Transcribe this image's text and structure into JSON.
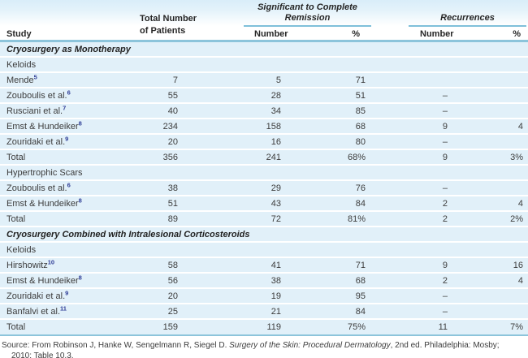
{
  "header": {
    "study": "Study",
    "total_line1": "Total Number",
    "total_line2": "of Patients",
    "remission_group": "Significant to Complete Remission",
    "recurrences_group": "Recurrences",
    "remission_number": "Number",
    "remission_percent": "%",
    "recurrences_number": "Number",
    "recurrences_percent": "%"
  },
  "rows": [
    {
      "type": "section",
      "label": "Cryosurgery as Monotherapy"
    },
    {
      "type": "subsection",
      "label": "Keloids"
    },
    {
      "type": "data",
      "study": "Mende",
      "sup": "5",
      "patients": "7",
      "rem_n": "5",
      "rem_pct": "71",
      "rec_n": "",
      "rec_pct": ""
    },
    {
      "type": "data",
      "study": "Zouboulis et al.",
      "sup": "6",
      "patients": "55",
      "rem_n": "28",
      "rem_pct": "51",
      "rec_n": "–",
      "rec_pct": ""
    },
    {
      "type": "data",
      "study": "Rusciani et al.",
      "sup": "7",
      "patients": "40",
      "rem_n": "34",
      "rem_pct": "85",
      "rec_n": "–",
      "rec_pct": ""
    },
    {
      "type": "data",
      "study": "Emst & Hundeiker",
      "sup": "8",
      "patients": "234",
      "rem_n": "158",
      "rem_pct": "68",
      "rec_n": "9",
      "rec_pct": "4"
    },
    {
      "type": "data",
      "study": "Zouridaki et al.",
      "sup": "9",
      "patients": "20",
      "rem_n": "16",
      "rem_pct": "80",
      "rec_n": "–",
      "rec_pct": ""
    },
    {
      "type": "total",
      "study": "Total",
      "sup": "",
      "patients": "356",
      "rem_n": "241",
      "rem_pct": "68%",
      "rec_n": "9",
      "rec_pct": "3%"
    },
    {
      "type": "subsection",
      "label": "Hypertrophic Scars"
    },
    {
      "type": "data",
      "study": "Zouboulis et al.",
      "sup": "6",
      "patients": "38",
      "rem_n": "29",
      "rem_pct": "76",
      "rec_n": "–",
      "rec_pct": ""
    },
    {
      "type": "data",
      "study": "Emst & Hundeiker",
      "sup": "8",
      "patients": "51",
      "rem_n": "43",
      "rem_pct": "84",
      "rec_n": "2",
      "rec_pct": "4"
    },
    {
      "type": "total",
      "study": "Total",
      "sup": "",
      "patients": "89",
      "rem_n": "72",
      "rem_pct": "81%",
      "rec_n": "2",
      "rec_pct": "2%"
    },
    {
      "type": "section",
      "label": "Cryosurgery Combined with Intralesional Corticosteroids"
    },
    {
      "type": "subsection",
      "label": "Keloids"
    },
    {
      "type": "data",
      "study": "Hirshowitz",
      "sup": "10",
      "patients": "58",
      "rem_n": "41",
      "rem_pct": "71",
      "rec_n": "9",
      "rec_pct": "16"
    },
    {
      "type": "data",
      "study": "Emst & Hundeiker",
      "sup": "8",
      "patients": "56",
      "rem_n": "38",
      "rem_pct": "68",
      "rec_n": "2",
      "rec_pct": "4"
    },
    {
      "type": "data",
      "study": "Zouridaki et al.",
      "sup": "9",
      "patients": "20",
      "rem_n": "19",
      "rem_pct": "95",
      "rec_n": "–",
      "rec_pct": ""
    },
    {
      "type": "data",
      "study": "Banfalvi et al.",
      "sup": "11",
      "patients": "25",
      "rem_n": "21",
      "rem_pct": "84",
      "rec_n": "–",
      "rec_pct": ""
    },
    {
      "type": "total",
      "study": "Total",
      "sup": "",
      "patients": "159",
      "rem_n": "119",
      "rem_pct": "75%",
      "rec_n": "11",
      "rec_pct": "7%"
    }
  ],
  "source": {
    "prefix": "Source: From Robinson J, Hanke W, Sengelmann R, Siegel D. ",
    "title": "Surgery of the Skin: Procedural Dermatology",
    "suffix": ", 2nd ed. Philadelphia: Mosby;",
    "line2": "2010; Table 10.3."
  },
  "colors": {
    "row_bg": "#e1f0f9",
    "header_band": "#d9edf9",
    "rule_teal": "#7fc0da",
    "rule_thick": "#8cc4db",
    "superscript": "#2e3d96",
    "text": "#3c3c3c"
  }
}
